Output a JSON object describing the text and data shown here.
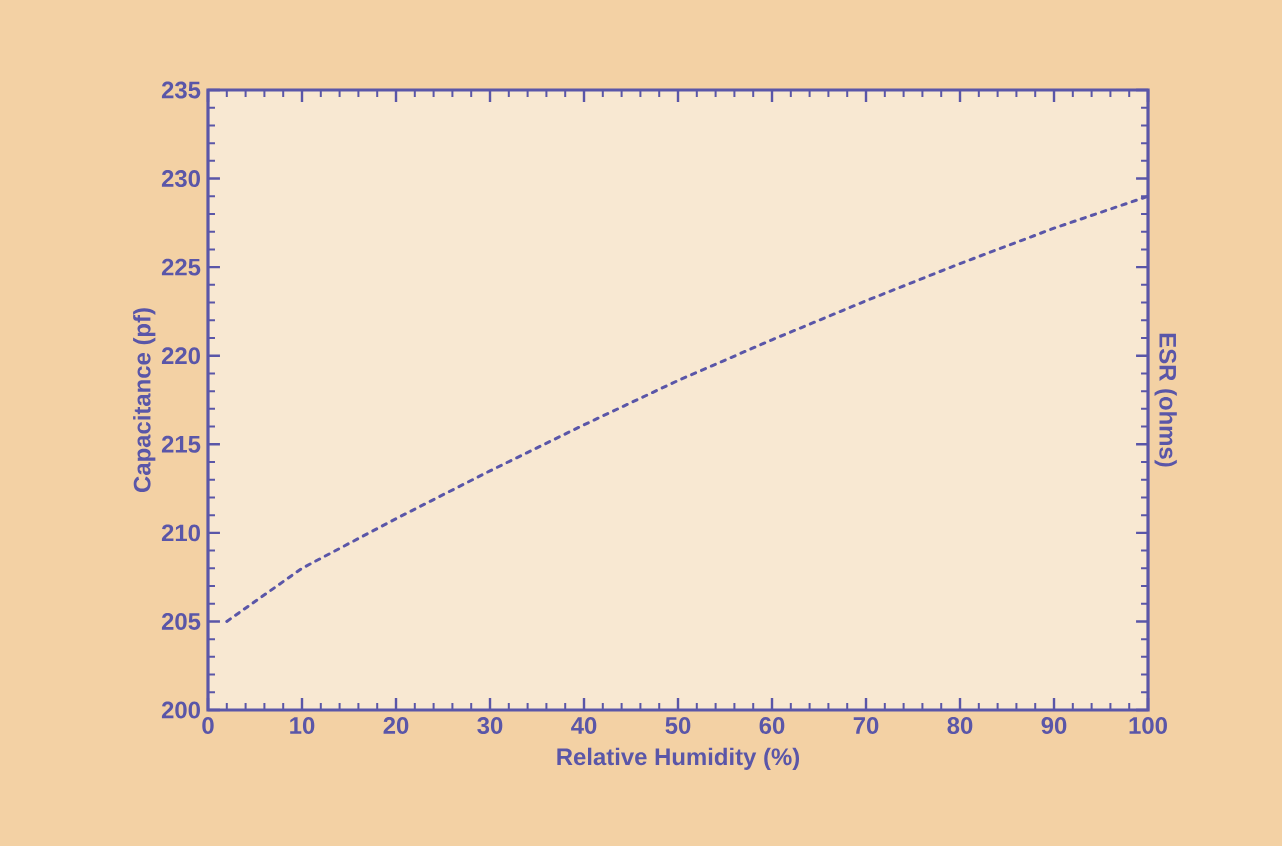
{
  "chart_data": {
    "type": "line",
    "xlabel": "Relative Humidity (%)",
    "ylabel": "Capacitance (pf)",
    "y2label": "ESR (ohms)",
    "x": [
      2,
      10,
      20,
      30,
      40,
      50,
      60,
      70,
      80,
      90,
      100
    ],
    "series": [
      {
        "color": "#5a56a8",
        "values": [
          205.0,
          208.0,
          210.8,
          213.5,
          216.1,
          218.6,
          220.9,
          223.1,
          225.2,
          227.2,
          229.0
        ]
      }
    ],
    "xlim": [
      0,
      100
    ],
    "ylim": [
      200,
      235
    ],
    "xticks": [
      0,
      10,
      20,
      30,
      40,
      50,
      60,
      70,
      80,
      90,
      100
    ],
    "yticks": [
      200,
      205,
      210,
      215,
      220,
      225,
      230,
      235
    ],
    "marker": "none",
    "line_style": "dotted",
    "grid": false
  }
}
